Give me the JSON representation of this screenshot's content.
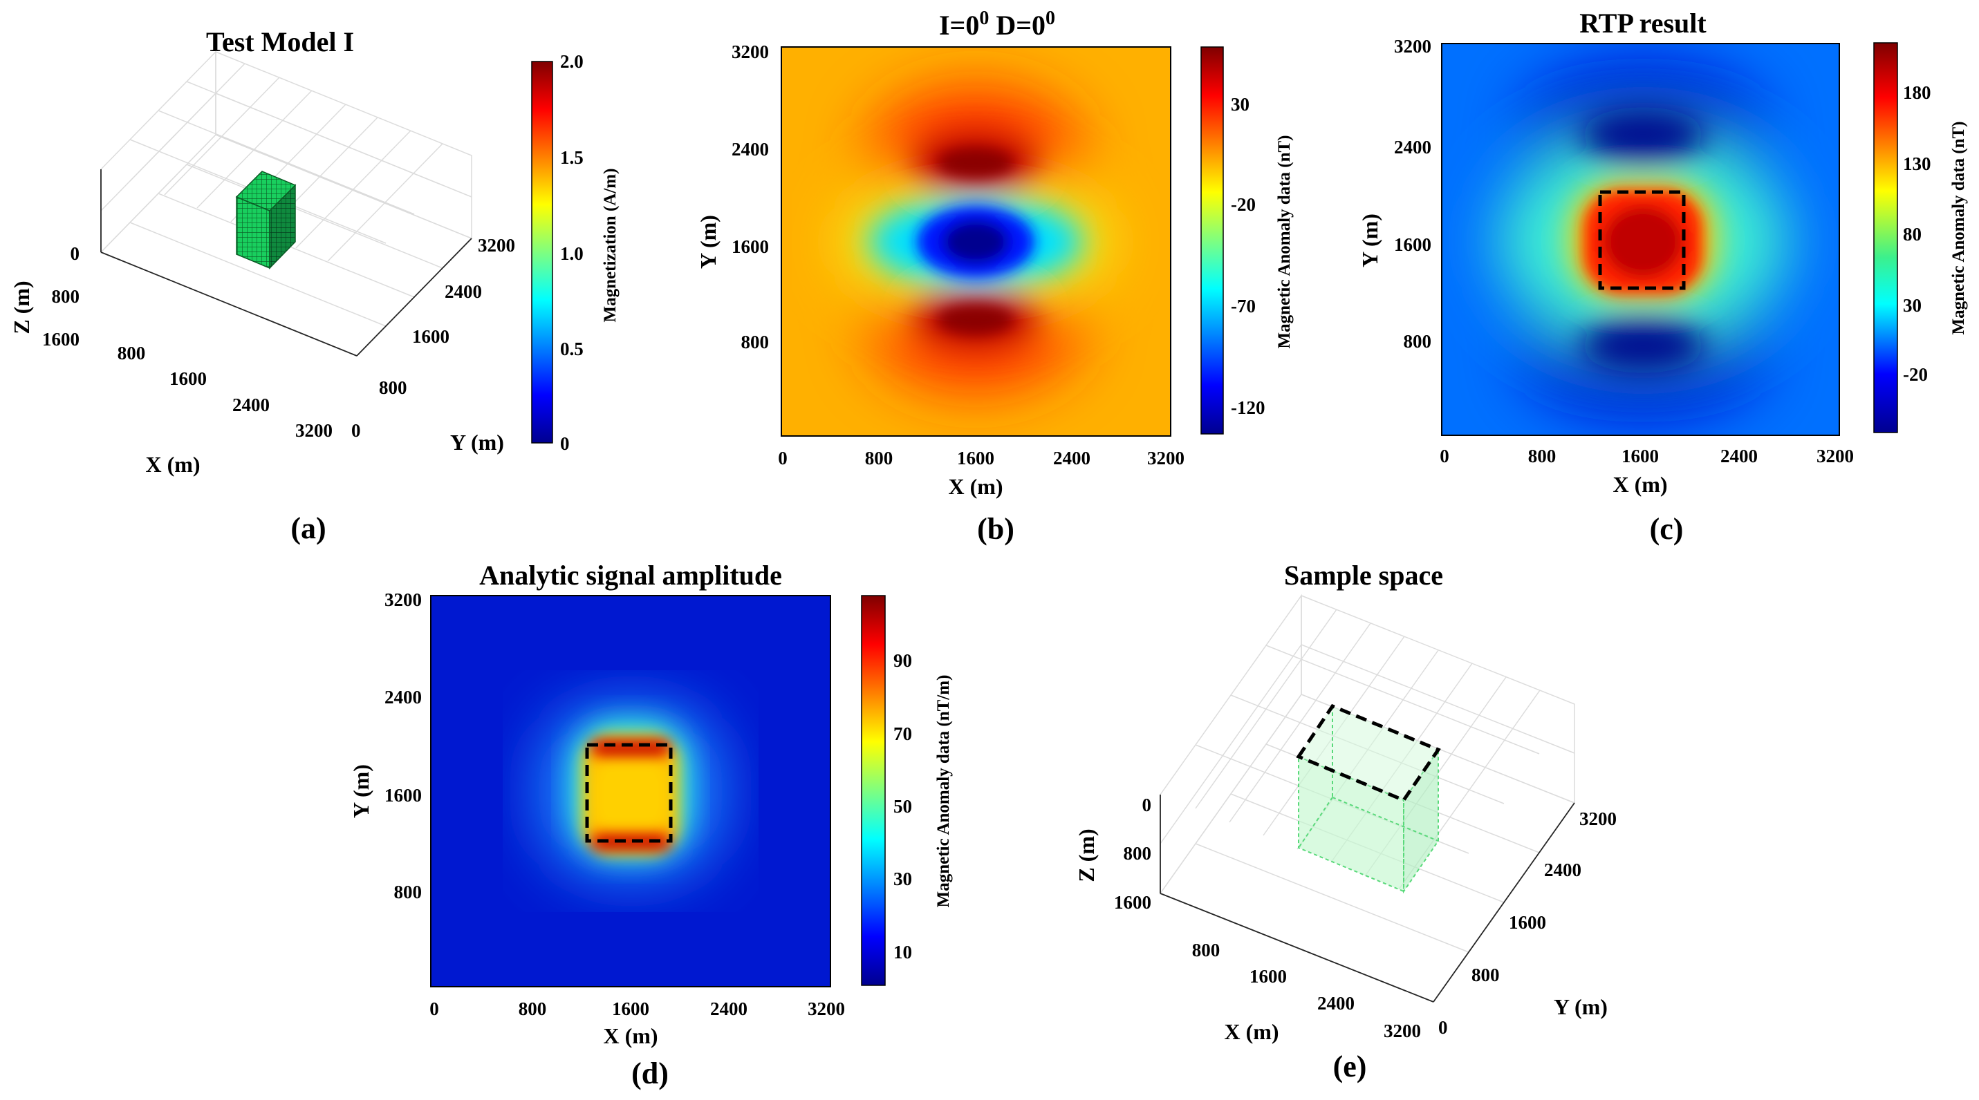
{
  "chart_data": [
    {
      "panel": "(a)",
      "type": "3d-voxel",
      "title": "Test Model I",
      "xlabel": "X (m)",
      "ylabel": "Y (m)",
      "zlabel": "Z (m)",
      "x_ticks": [
        "800",
        "1600",
        "2400",
        "3200"
      ],
      "y_ticks": [
        "0",
        "800",
        "1600",
        "2400",
        "3200"
      ],
      "z_ticks": [
        "0",
        "800",
        "1600"
      ],
      "body": {
        "x_range": [
          1200,
          2000
        ],
        "y_range": [
          1200,
          2000
        ],
        "z_range": [
          0,
          800
        ],
        "magnetization": 1.0
      },
      "colorbar": {
        "label": "Magnetization (A/m)",
        "ticks": [
          "0",
          "0.5",
          "1.0",
          "1.5",
          "2.0"
        ],
        "range": [
          0,
          2.0
        ]
      },
      "panel_label": "(a)"
    },
    {
      "panel": "(b)",
      "type": "heatmap",
      "title_main": "I=0",
      "title_sup1": "0",
      "title_mid": " D=0",
      "title_sup2": "0",
      "xlabel": "X (m)",
      "ylabel": "Y (m)",
      "x_ticks": [
        "0",
        "800",
        "1600",
        "2400",
        "3200"
      ],
      "y_ticks": [
        "800",
        "1600",
        "2400",
        "3200"
      ],
      "xlim": [
        0,
        3200
      ],
      "ylim": [
        0,
        3200
      ],
      "colorbar": {
        "label": "Magnetic Anomaly data (nT)",
        "ticks": [
          "-120",
          "-70",
          "-20",
          "30"
        ],
        "range": [
          -140,
          50
        ]
      },
      "description_field": "Total-field anomaly of prism at I=0, D=0: central low, maxima north and south",
      "panel_label": "(b)"
    },
    {
      "panel": "(c)",
      "type": "heatmap",
      "title": "RTP result",
      "xlabel": "X (m)",
      "ylabel": "Y (m)",
      "x_ticks": [
        "0",
        "800",
        "1600",
        "2400",
        "3200"
      ],
      "y_ticks": [
        "800",
        "1600",
        "2400",
        "3200"
      ],
      "xlim": [
        0,
        3200
      ],
      "ylim": [
        0,
        3200
      ],
      "colorbar": {
        "label": "Magnetic Anomaly data (nT)",
        "ticks": [
          "-20",
          "30",
          "80",
          "130",
          "180"
        ],
        "range": [
          -50,
          220
        ]
      },
      "outline": {
        "x_range": [
          1200,
          2000
        ],
        "y_range": [
          1200,
          2000
        ]
      },
      "panel_label": "(c)"
    },
    {
      "panel": "(d)",
      "type": "heatmap",
      "title": "Analytic signal amplitude",
      "xlabel": "X (m)",
      "ylabel": "Y (m)",
      "x_ticks": [
        "0",
        "800",
        "1600",
        "2400",
        "3200"
      ],
      "y_ticks": [
        "800",
        "1600",
        "2400",
        "3200"
      ],
      "xlim": [
        0,
        3200
      ],
      "ylim": [
        0,
        3200
      ],
      "colorbar": {
        "label": "Magnetic Anomaly data (nT/m)",
        "ticks": [
          "10",
          "30",
          "50",
          "70",
          "90"
        ],
        "range": [
          0,
          107
        ]
      },
      "outline": {
        "x_range": [
          1250,
          1950
        ],
        "y_range": [
          1200,
          2000
        ]
      },
      "panel_label": "(d)"
    },
    {
      "panel": "(e)",
      "type": "3d-box",
      "title": "Sample space",
      "xlabel": "X (m)",
      "ylabel": "Y (m)",
      "zlabel": "Z (m)",
      "x_ticks": [
        "800",
        "1600",
        "2400",
        "3200"
      ],
      "y_ticks": [
        "0",
        "800",
        "1600",
        "2400",
        "3200"
      ],
      "z_ticks": [
        "0",
        "800",
        "1600"
      ],
      "box": {
        "x_range": [
          800,
          2000
        ],
        "y_range": [
          1200,
          2600
        ],
        "z_range": [
          0,
          1600
        ]
      },
      "panel_label": "(e)"
    }
  ]
}
